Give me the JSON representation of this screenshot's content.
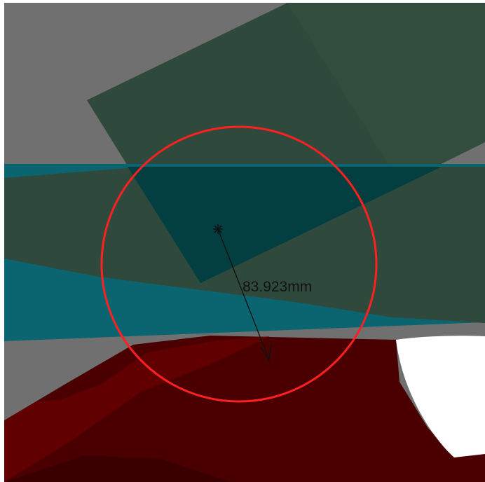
{
  "measurement": {
    "radius_label": "83.923mm"
  },
  "colors": {
    "background_white": "#ffffff",
    "gray_surface": "#707070",
    "dark_gray_surface": "#5a5a5a",
    "dark_green_panel": "#2f4a3c",
    "teal_band": "#0b6570",
    "dark_teal_overlap": "#033f40",
    "dark_red_surface": "#4a0000",
    "red_highlight": "#6a0000",
    "circle_red": "#ff2020",
    "dimension_black": "#111111"
  },
  "icons": {
    "center_marker": "asterisk-center-marker-icon",
    "arrow": "dimension-arrow-icon"
  }
}
